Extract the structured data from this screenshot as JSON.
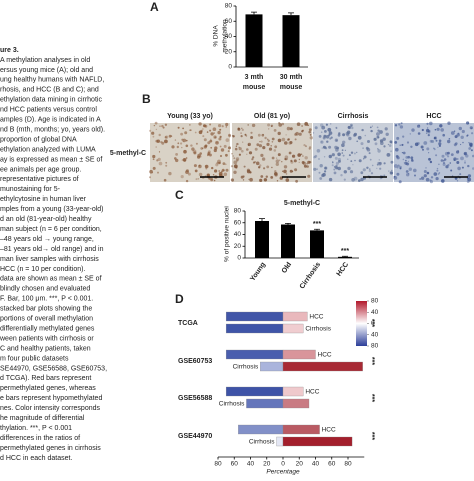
{
  "caption": {
    "title": "ure 3.",
    "lines": [
      "A methylation analyses in old",
      "ersus young mice (A); old and",
      "ung healthy humans with NAFLD,",
      "rhosis, and HCC (B and C); and",
      "ethylation data mining in cirrhotic",
      "nd HCC patients versus control",
      "amples (D). Age is indicated in A",
      "nd B (mth, months; yo, years old).",
      "proportion of global DNA",
      "ethylation analyzed with LUMA",
      "ay is expressed as mean ± SE of",
      "ee animals per age group.",
      "representative pictures of",
      "munostaining for 5-",
      "ethylcytosine in human liver",
      "mples from a young (33-year-old)",
      "d an old (81-year-old) healthy",
      "man subject (n = 6 per condition,",
      "–48 years old → young range,",
      "–81 years old→ old range) and in",
      "man liver samples with cirrhosis",
      "HCC (n = 10 per condition).",
      "data are shown as mean ± SE of",
      "blindly chosen and evaluated",
      "F. Bar, 100 μm. ***, P < 0.001.",
      "stacked bar plots showing the",
      "portions of overall methylation",
      "differentially methylated genes",
      "ween patients with cirrhosis or",
      "C and healthy patients, taken",
      "m four public datasets",
      "SE44970, GSE56588, GSE60753,",
      "d TCGA). Red bars represent",
      "permethylated genes, whereas",
      "e bars represent hypomethylated",
      "nes. Color intensity corresponds",
      "he magnitude of differential",
      "thylation. ***, P < 0.001",
      "differences in the ratios of",
      "permethylated genes in cirrhosis",
      "d HCC in each dataset."
    ]
  },
  "chart_data": [
    {
      "type": "bar",
      "panel": "A",
      "ylabel": [
        "% DNA",
        "methylation"
      ],
      "categories": [
        [
          "3 mth",
          "mouse"
        ],
        [
          "30 mth",
          "mouse"
        ]
      ],
      "values": [
        69,
        68
      ],
      "errors": [
        3,
        3
      ],
      "annotations": [
        null,
        null
      ],
      "color": "#000000",
      "ylim": [
        0,
        80
      ],
      "yticks": [
        0,
        20,
        40,
        60,
        80
      ]
    },
    {
      "type": "images",
      "panel": "B",
      "row_label": "5-methyl-C",
      "titles": [
        "Young (33 yo)",
        "Old (81 yo)",
        "Cirrhosis",
        "HCC"
      ]
    },
    {
      "type": "bar",
      "panel": "C",
      "title": "5-methyl-C",
      "ylabel": [
        "% of positive nuclei"
      ],
      "categories": [
        "Young",
        "Old",
        "Cirrhosis",
        "HCC"
      ],
      "values": [
        63,
        57,
        47,
        2
      ],
      "errors": [
        4,
        2,
        2,
        1
      ],
      "annotations": [
        null,
        null,
        "***",
        "***"
      ],
      "color": "#000000",
      "ylim": [
        0,
        80
      ],
      "yticks": [
        0,
        20,
        40,
        60,
        80
      ]
    },
    {
      "type": "diverging_bar",
      "panel": "D",
      "xlabel": "Percentage",
      "xlim": [
        -80,
        100
      ],
      "xticks": [
        {
          "value": -80,
          "label": "80"
        },
        {
          "value": -60,
          "label": "60"
        },
        {
          "value": -40,
          "label": "40"
        },
        {
          "value": -20,
          "label": "20"
        },
        0,
        20,
        40,
        60,
        80
      ],
      "datasets": [
        {
          "name": "TCGA",
          "annotation": "***",
          "bars": [
            {
              "label": "HCC",
              "values": [
                -70,
                30
              ],
              "colors": [
                "#4256a8",
                "#e9b8bc"
              ]
            },
            {
              "label": "Cirrhosis",
              "values": [
                -70,
                25
              ],
              "colors": [
                "#3f55a8",
                "#f0cdd0"
              ]
            }
          ]
        },
        {
          "name": "GSE60753",
          "annotation": "***",
          "bars": [
            {
              "label": "HCC",
              "values": [
                -70,
                40
              ],
              "colors": [
                "#4a5eae",
                "#d9959b"
              ]
            },
            {
              "label": "Cirrhosis",
              "values": [
                -28,
                98
              ],
              "colors": [
                "#aab4dc",
                "#a82a35"
              ]
            }
          ]
        },
        {
          "name": "GSE56588",
          "annotation": "***",
          "bars": [
            {
              "label": "HCC",
              "values": [
                -70,
                25
              ],
              "colors": [
                "#3e53a7",
                "#efc9cc"
              ]
            },
            {
              "label": "Cirrhosis",
              "values": [
                -45,
                32
              ],
              "colors": [
                "#6576bb",
                "#c97b83"
              ]
            }
          ]
        },
        {
          "name": "GSE44970",
          "annotation": "***",
          "bars": [
            {
              "label": "HCC",
              "values": [
                -55,
                45
              ],
              "colors": [
                "#8290c8",
                "#b95a63"
              ]
            },
            {
              "label": "Cirrhosis",
              "values": [
                -8,
                85
              ],
              "colors": [
                "#e4e7f4",
                "#a31f2c"
              ]
            }
          ]
        }
      ],
      "colorbar": {
        "lim": [
          -80,
          80
        ],
        "colors": [
          "#2c3e99",
          "#ffffff",
          "#b2182b"
        ],
        "ticks": [
          80,
          40,
          0,
          {
            "value": -40,
            "label": "40"
          },
          {
            "value": -80,
            "label": "80"
          }
        ]
      }
    }
  ]
}
